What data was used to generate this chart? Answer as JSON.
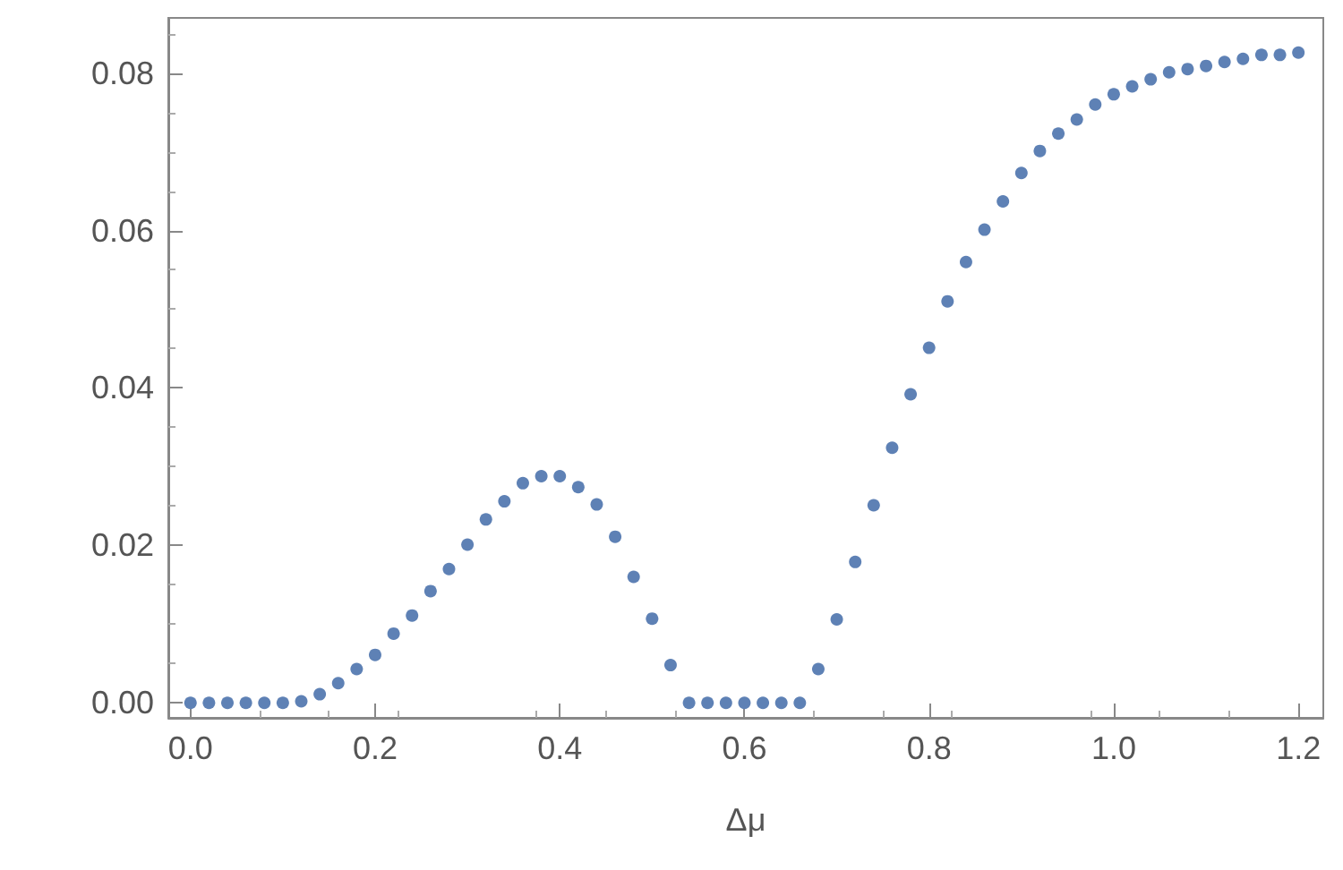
{
  "chart_data": {
    "type": "scatter",
    "xlabel": "Δμ",
    "marker": "circle",
    "grid": false,
    "x": [
      0,
      0.02,
      0.04,
      0.06,
      0.08,
      0.1,
      0.12,
      0.14,
      0.16,
      0.18,
      0.2,
      0.22,
      0.24,
      0.26,
      0.28,
      0.3,
      0.32,
      0.34,
      0.36,
      0.38,
      0.4,
      0.42,
      0.44,
      0.46,
      0.48,
      0.5,
      0.52,
      0.54,
      0.56,
      0.58,
      0.6,
      0.62,
      0.64,
      0.66,
      0.68,
      0.7,
      0.72,
      0.74,
      0.76,
      0.78,
      0.8,
      0.82,
      0.84,
      0.86,
      0.88,
      0.9,
      0.92,
      0.94,
      0.96,
      0.98,
      1,
      1.02,
      1.04,
      1.06,
      1.08,
      1.1,
      1.12,
      1.14,
      1.16,
      1.18,
      1.2
    ],
    "series": [
      {
        "color": "#5e81b5",
        "values": [
          0,
          0,
          0,
          0,
          0,
          0,
          0.0002,
          0.0011,
          0.0025,
          0.0043,
          0.0061,
          0.0088,
          0.0111,
          0.0142,
          0.017,
          0.0201,
          0.0233,
          0.0256,
          0.0279,
          0.0288,
          0.0288,
          0.0274,
          0.0252,
          0.0211,
          0.016,
          0.0107,
          0.0048,
          0,
          0,
          0,
          0,
          0,
          0,
          0,
          0.0043,
          0.0106,
          0.0179,
          0.0251,
          0.0324,
          0.0392,
          0.0451,
          0.051,
          0.056,
          0.0601,
          0.0637,
          0.0673,
          0.0701,
          0.0723,
          0.0741,
          0.076,
          0.0773,
          0.0783,
          0.0792,
          0.0801,
          0.0805,
          0.0809,
          0.0814,
          0.0818,
          0.0823,
          0.0823,
          0.0826
        ]
      }
    ],
    "xlim": [
      -0.024,
      1.227
    ],
    "xticks": [
      {
        "value": 0,
        "label": "0.0"
      },
      0.2,
      0.4,
      0.6,
      0.8,
      {
        "value": 1,
        "label": "1.0"
      },
      1.2
    ],
    "ylim": [
      -0.0019,
      0.087
    ],
    "yticks": [
      {
        "value": 0,
        "label": "0.00"
      },
      0.02,
      0.04,
      0.06,
      0.08
    ]
  }
}
